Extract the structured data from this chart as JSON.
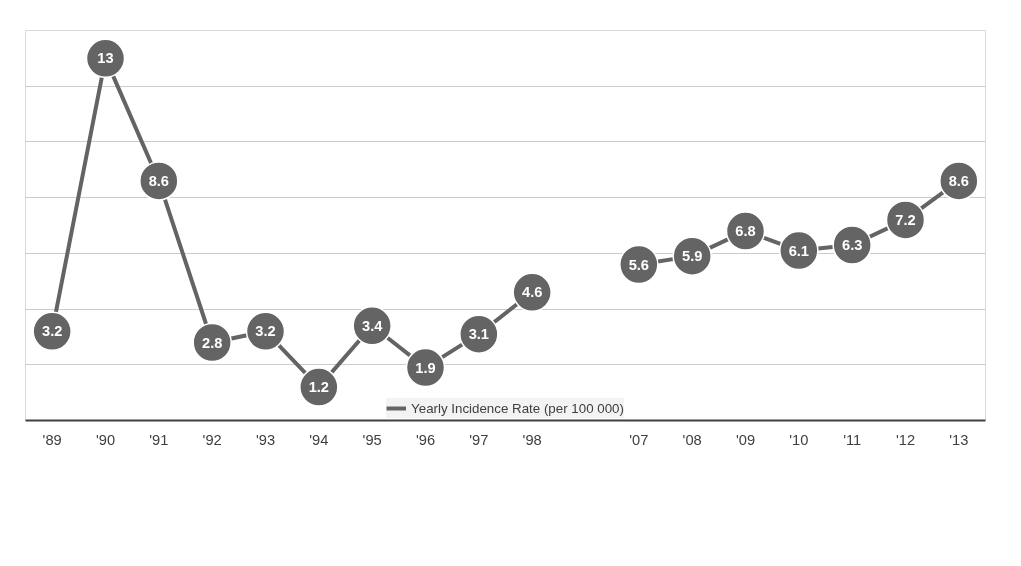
{
  "chart_data": {
    "type": "line",
    "categories": [
      "'89",
      "'90",
      "'91",
      "'92",
      "'93",
      "'94",
      "'95",
      "'96",
      "'97",
      "'98",
      null,
      "'07",
      "'08",
      "'09",
      "'10",
      "'11",
      "'12",
      "'13"
    ],
    "series": [
      {
        "name": "Yearly Incidence Rate (per 100 000)",
        "color": "#646464",
        "values": [
          3.2,
          13,
          8.6,
          2.8,
          3.2,
          1.2,
          3.4,
          1.9,
          3.1,
          4.6,
          null,
          5.6,
          5.9,
          6.8,
          6.1,
          6.3,
          7.2,
          8.6
        ]
      }
    ],
    "ylim": [
      0,
      14
    ],
    "yticks": [
      {
        "value": 0,
        "label": null
      },
      {
        "value": 2,
        "label": null
      },
      {
        "value": 4,
        "label": null
      },
      {
        "value": 6,
        "label": null
      },
      {
        "value": 8,
        "label": null
      },
      {
        "value": 10,
        "label": null
      },
      {
        "value": 12,
        "label": null
      },
      {
        "value": 14,
        "label": null
      }
    ],
    "tick_labels": "x",
    "grid": "y",
    "legend": "bottom",
    "marker": "circle",
    "line_style": "solid",
    "data_labels": true
  }
}
